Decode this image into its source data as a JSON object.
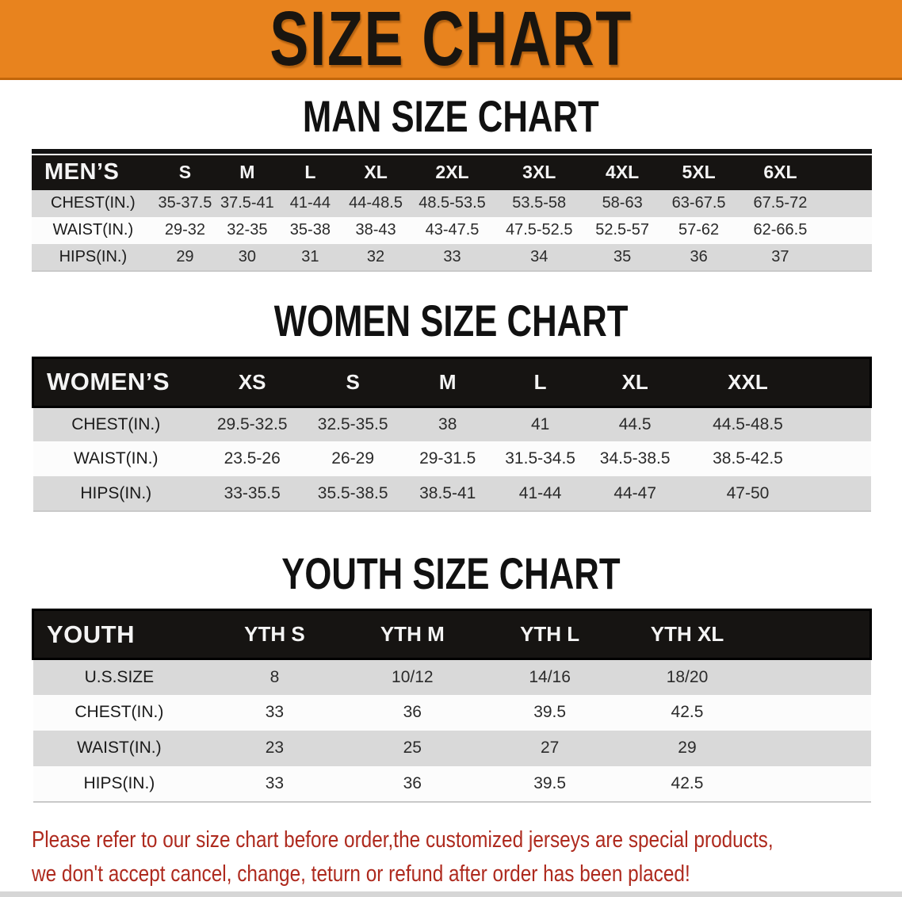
{
  "banner": {
    "title": "SIZE CHART",
    "bg_color": "#E8831E",
    "edge_color": "#C2660A"
  },
  "colors": {
    "header_bg": "#161412",
    "row_gray": "#D9D9D9",
    "row_white": "#FCFCFC",
    "footer_text": "#AE2A1E"
  },
  "sections": [
    {
      "heading": "MAN SIZE CHART",
      "table": {
        "label": "MEN’S",
        "columns": [
          "S",
          "M",
          "L",
          "XL",
          "2XL",
          "3XL",
          "4XL",
          "5XL",
          "6XL"
        ],
        "rows": [
          {
            "label": "CHEST(IN.)",
            "values": [
              "35-37.5",
              "37.5-41",
              "41-44",
              "44-48.5",
              "48.5-53.5",
              "53.5-58",
              "58-63",
              "63-67.5",
              "67.5-72"
            ]
          },
          {
            "label": "WAIST(IN.)",
            "values": [
              "29-32",
              "32-35",
              "35-38",
              "38-43",
              "43-47.5",
              "47.5-52.5",
              "52.5-57",
              "57-62",
              "62-66.5"
            ]
          },
          {
            "label": "HIPS(IN.)",
            "values": [
              "29",
              "30",
              "31",
              "32",
              "33",
              "34",
              "35",
              "36",
              "37"
            ]
          }
        ]
      }
    },
    {
      "heading": "WOMEN SIZE CHART",
      "table": {
        "label": "WOMEN’S",
        "columns": [
          "XS",
          "S",
          "M",
          "L",
          "XL",
          "XXL"
        ],
        "rows": [
          {
            "label": "CHEST(IN.)",
            "values": [
              "29.5-32.5",
              "32.5-35.5",
              "38",
              "41",
              "44.5",
              "44.5-48.5"
            ]
          },
          {
            "label": "WAIST(IN.)",
            "values": [
              "23.5-26",
              "26-29",
              "29-31.5",
              "31.5-34.5",
              "34.5-38.5",
              "38.5-42.5"
            ]
          },
          {
            "label": "HIPS(IN.)",
            "values": [
              "33-35.5",
              "35.5-38.5",
              "38.5-41",
              "41-44",
              "44-47",
              "47-50"
            ]
          }
        ]
      }
    },
    {
      "heading": "YOUTH SIZE CHART",
      "table": {
        "label": "YOUTH",
        "columns": [
          "YTH S",
          "YTH M",
          "YTH L",
          "YTH XL"
        ],
        "rows": [
          {
            "label": "U.S.SIZE",
            "values": [
              "8",
              "10/12",
              "14/16",
              "18/20"
            ]
          },
          {
            "label": "CHEST(IN.)",
            "values": [
              "33",
              "36",
              "39.5",
              "42.5"
            ]
          },
          {
            "label": "WAIST(IN.)",
            "values": [
              "23",
              "25",
              "27",
              "29"
            ]
          },
          {
            "label": "HIPS(IN.)",
            "values": [
              "33",
              "36",
              "39.5",
              "42.5"
            ]
          }
        ]
      }
    }
  ],
  "footer": {
    "line1": "Please refer to our size chart before order,the customized jerseys are special products,",
    "line2": "we don't accept cancel, change, teturn or refund after order has been placed!"
  }
}
